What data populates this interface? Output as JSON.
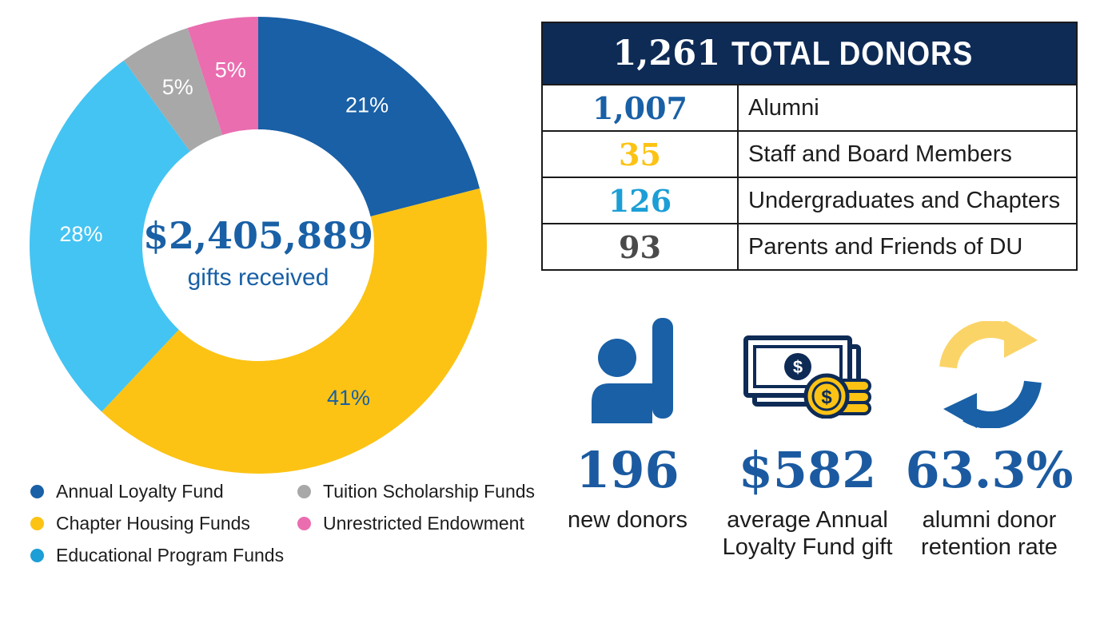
{
  "chart_data": {
    "type": "pie",
    "variant": "donut",
    "center": {
      "amount": "$2,405,889",
      "caption": "gifts received"
    },
    "slices": [
      {
        "name": "Annual Loyalty Fund",
        "value": 21,
        "label": "21%",
        "color": "#1960a6",
        "label_color": "#ffffff"
      },
      {
        "name": "Chapter Housing Funds",
        "value": 41,
        "label": "41%",
        "color": "#fcc314",
        "label_color": "#1960a6"
      },
      {
        "name": "Educational Program Funds",
        "value": 28,
        "label": "28%",
        "color": "#44c4f2",
        "label_color": "#ffffff"
      },
      {
        "name": "Tuition Scholarship Funds",
        "value": 5,
        "label": "5%",
        "color": "#a8a8a8",
        "label_color": "#ffffff"
      },
      {
        "name": "Unrestricted Endowment",
        "value": 5,
        "label": "5%",
        "color": "#ea6db0",
        "label_color": "#ffffff"
      }
    ],
    "legend_placement": "bottom"
  },
  "legend": [
    {
      "label": "Annual Loyalty Fund",
      "color": "#1960a6"
    },
    {
      "label": "Chapter Housing Funds",
      "color": "#fcc314"
    },
    {
      "label": "Educational Program Funds",
      "color": "#1c9ed6"
    },
    {
      "label": "Tuition Scholarship Funds",
      "color": "#a8a8a8"
    },
    {
      "label": "Unrestricted Endowment",
      "color": "#ea6db0"
    }
  ],
  "donors": {
    "total": "1,261",
    "total_label": "TOTAL DONORS",
    "header_color": "#0e2b56",
    "rows": [
      {
        "count": "1,007",
        "label": "Alumni",
        "color": "#1960a6"
      },
      {
        "count": "35",
        "label": "Staff and Board Members",
        "color": "#fcc314"
      },
      {
        "count": "126",
        "label": "Undergraduates and Chapters",
        "color": "#1c9ed6"
      },
      {
        "count": "93",
        "label": "Parents and Friends of DU",
        "color": "#4a4a4a"
      }
    ]
  },
  "stats": [
    {
      "icon": "raised-hand-icon",
      "value": "196",
      "caption_line1": "new donors",
      "caption_line2": ""
    },
    {
      "icon": "money-coins-icon",
      "value": "$582",
      "caption_line1": "average Annual",
      "caption_line2": "Loyalty Fund gift"
    },
    {
      "icon": "refresh-cycle-icon",
      "value": "63.3%",
      "caption_line1": "alumni donor",
      "caption_line2": "retention rate"
    }
  ]
}
